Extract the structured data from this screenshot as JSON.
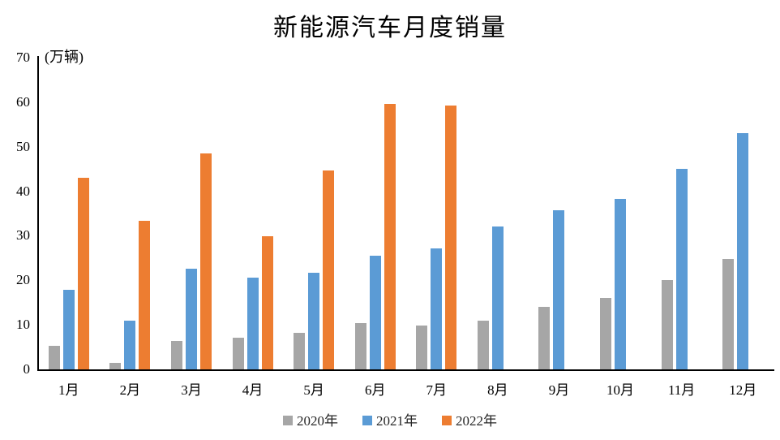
{
  "chart_data": {
    "type": "bar",
    "title": "新能源汽车月度销量",
    "unit_label": "(万辆)",
    "categories": [
      "1月",
      "2月",
      "3月",
      "4月",
      "5月",
      "6月",
      "7月",
      "8月",
      "9月",
      "10月",
      "11月",
      "12月"
    ],
    "series": [
      {
        "name": "2020年",
        "color": "#a6a6a6",
        "values": [
          5.2,
          1.5,
          6.4,
          7.2,
          8.2,
          10.4,
          9.8,
          10.9,
          14.1,
          16.1,
          20.0,
          24.8
        ]
      },
      {
        "name": "2021年",
        "color": "#5b9bd5",
        "values": [
          17.9,
          11.0,
          22.6,
          20.6,
          21.7,
          25.6,
          27.1,
          32.1,
          35.7,
          38.3,
          45.0,
          53.1
        ]
      },
      {
        "name": "2022年",
        "color": "#ed7d31",
        "values": [
          43.1,
          33.4,
          48.4,
          29.9,
          44.7,
          59.6,
          59.3
        ]
      }
    ],
    "ylim": [
      0,
      70
    ],
    "ytick_step": 10,
    "yticks": [
      "0",
      "10",
      "20",
      "30",
      "40",
      "50",
      "60",
      "70"
    ],
    "grid": false,
    "legend_position": "bottom",
    "axis_color": "#000000",
    "text_color": "#000000",
    "legend_text_color": "#262626",
    "background_color": "#ffffff"
  }
}
